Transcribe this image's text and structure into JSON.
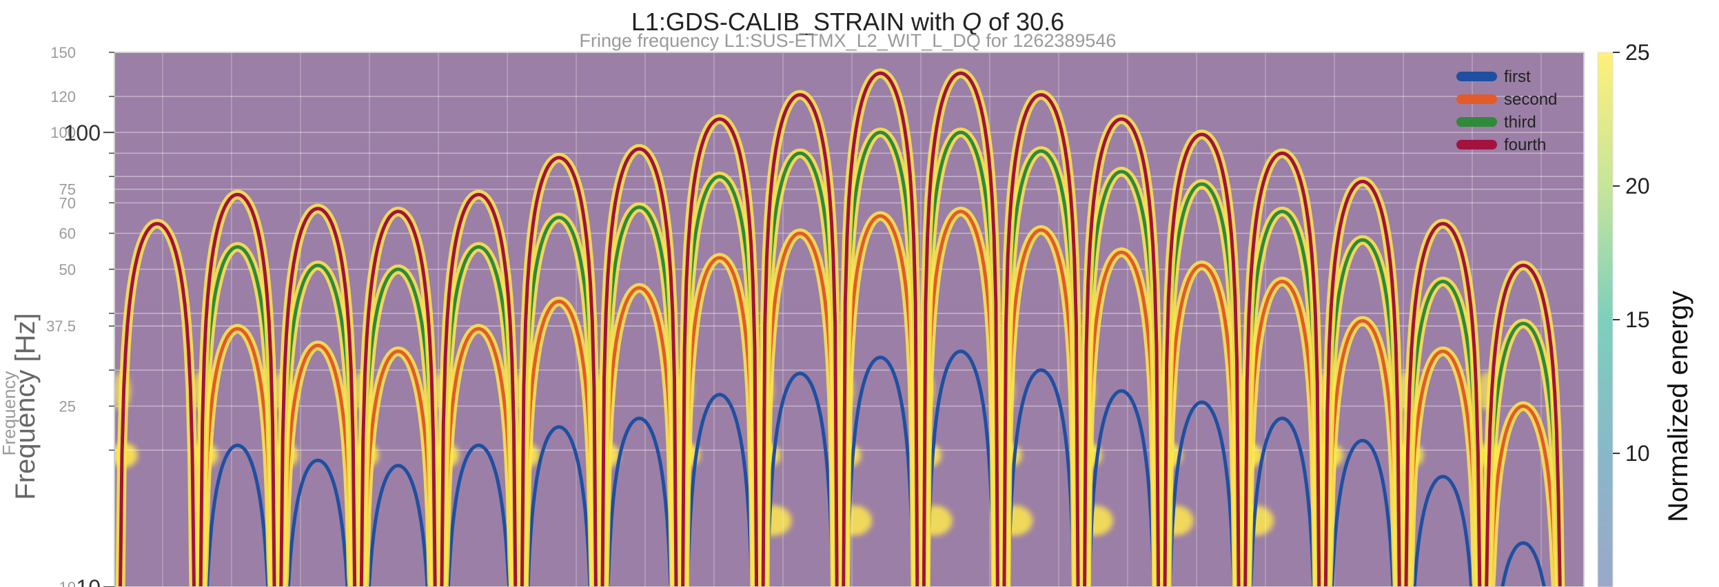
{
  "chart_data": {
    "type": "heatmap",
    "title": "L1:GDS-CALIB_STRAIN with Q of 30.6",
    "title_italic_part": "Q",
    "subtitle": "Fringe frequency L1:SUS-ETMX_L2_WIT_L_DQ for 1262389546",
    "ylabel": "Frequency [Hz]",
    "ylabel_inner": "Frequency",
    "colorbar_label": "Normalized energy",
    "yscale": "log",
    "ylim": [
      10,
      150
    ],
    "grid": true,
    "y_ticks_outer": [
      "10",
      "100"
    ],
    "y_ticks_inner": [
      "10",
      "25",
      "37.5",
      "50",
      "60",
      "70",
      "75",
      "100",
      "120",
      "150"
    ],
    "colorbar_ticks": [
      "10",
      "15",
      "20",
      "25"
    ],
    "colorbar_range": [
      5,
      25
    ],
    "colormap": [
      "#4b2d73",
      "#4c6fa6",
      "#59c2b5",
      "#b8e07a",
      "#ffe74c"
    ],
    "legend_position": "top-right",
    "series": [
      {
        "name": "first",
        "color": "#1f4fa0",
        "peaks_hz": [
          null,
          20.5,
          19.0,
          18.5,
          20.5,
          22.5,
          23.5,
          26.5,
          29.5,
          32.0,
          33.0,
          30.0,
          27.0,
          25.5,
          23.5,
          21.0,
          17.5,
          12.5
        ]
      },
      {
        "name": "second",
        "color": "#e35b28",
        "peaks_hz": [
          null,
          37.0,
          34.0,
          33.0,
          37.0,
          42.5,
          45.5,
          53.0,
          60.0,
          65.5,
          67.0,
          61.0,
          54.5,
          51.0,
          47.0,
          38.5,
          33.0,
          25.0
        ]
      },
      {
        "name": "third",
        "color": "#2f8a3b",
        "peaks_hz": [
          null,
          56.0,
          51.0,
          50.0,
          56.0,
          65.0,
          68.5,
          80.0,
          90.0,
          100.0,
          100.0,
          91.0,
          82.0,
          77.0,
          67.0,
          58.0,
          47.0,
          38.0
        ]
      },
      {
        "name": "fourth",
        "color": "#a3133e",
        "peaks_hz": [
          63.0,
          73.0,
          68.0,
          67.0,
          73.0,
          88.0,
          92.0,
          107.0,
          121.0,
          135.0,
          135.0,
          121.0,
          107.0,
          99.0,
          90.0,
          78.0,
          63.0,
          51.0
        ]
      }
    ],
    "arches": 18,
    "arch_spacing_note": "fringe arches evenly spaced across time axis"
  }
}
